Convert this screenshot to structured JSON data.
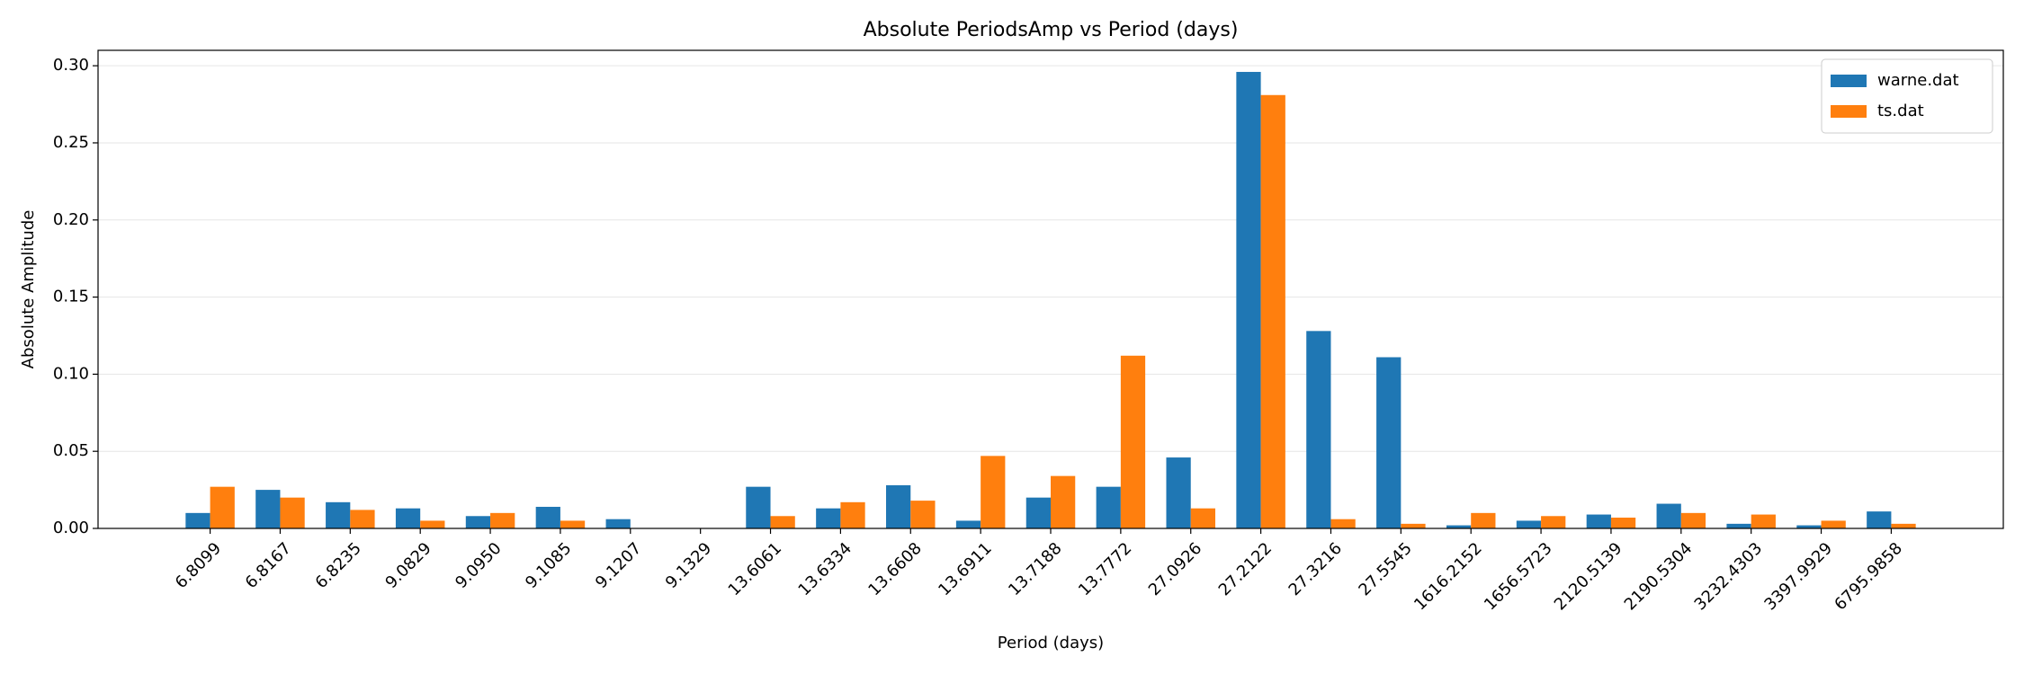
{
  "chart_data": {
    "type": "bar",
    "title": "Absolute PeriodsAmp vs Period (days)",
    "x_label": "Period (days)",
    "y_label": "Absolute Amplitude",
    "categories": [
      "6.8099",
      "6.8167",
      "6.8235",
      "9.0829",
      "9.0950",
      "9.1085",
      "9.1207",
      "9.1329",
      "13.6061",
      "13.6334",
      "13.6608",
      "13.6911",
      "13.7188",
      "13.7772",
      "27.0926",
      "27.2122",
      "27.3216",
      "27.5545",
      "1616.2152",
      "1656.5723",
      "2120.5139",
      "2190.5304",
      "3232.4303",
      "3397.9929",
      "6795.9858"
    ],
    "series": [
      {
        "name": "warne.dat",
        "color": "#1f77b4",
        "values": [
          0.01,
          0.025,
          0.017,
          0.013,
          0.008,
          0.014,
          0.006,
          0,
          0.027,
          0.013,
          0.028,
          0.005,
          0.02,
          0.027,
          0.046,
          0.296,
          0.128,
          0.111,
          0.002,
          0.005,
          0.009,
          0.016,
          0.003,
          0.002,
          0.011
        ]
      },
      {
        "name": "ts.dat",
        "color": "#ff7f0e",
        "values": [
          0.027,
          0.02,
          0.012,
          0.005,
          0.01,
          0.005,
          0,
          0,
          0.008,
          0.017,
          0.018,
          0.047,
          0.034,
          0.112,
          0.013,
          0.281,
          0.006,
          0.003,
          0.01,
          0.008,
          0.007,
          0.01,
          0.009,
          0.005,
          0.003
        ]
      }
    ],
    "ylim": [
      0,
      0.31
    ],
    "yticks": [
      {
        "value": 0,
        "label": "0.00"
      },
      {
        "value": 0.05,
        "label": "0.05"
      },
      {
        "value": 0.1,
        "label": "0.10"
      },
      {
        "value": 0.15,
        "label": "0.15"
      },
      {
        "value": 0.2,
        "label": "0.20"
      },
      {
        "value": 0.25,
        "label": "0.25"
      },
      {
        "value": 0.3,
        "label": "0.30"
      }
    ],
    "grid": true,
    "legend": "upper-right"
  }
}
